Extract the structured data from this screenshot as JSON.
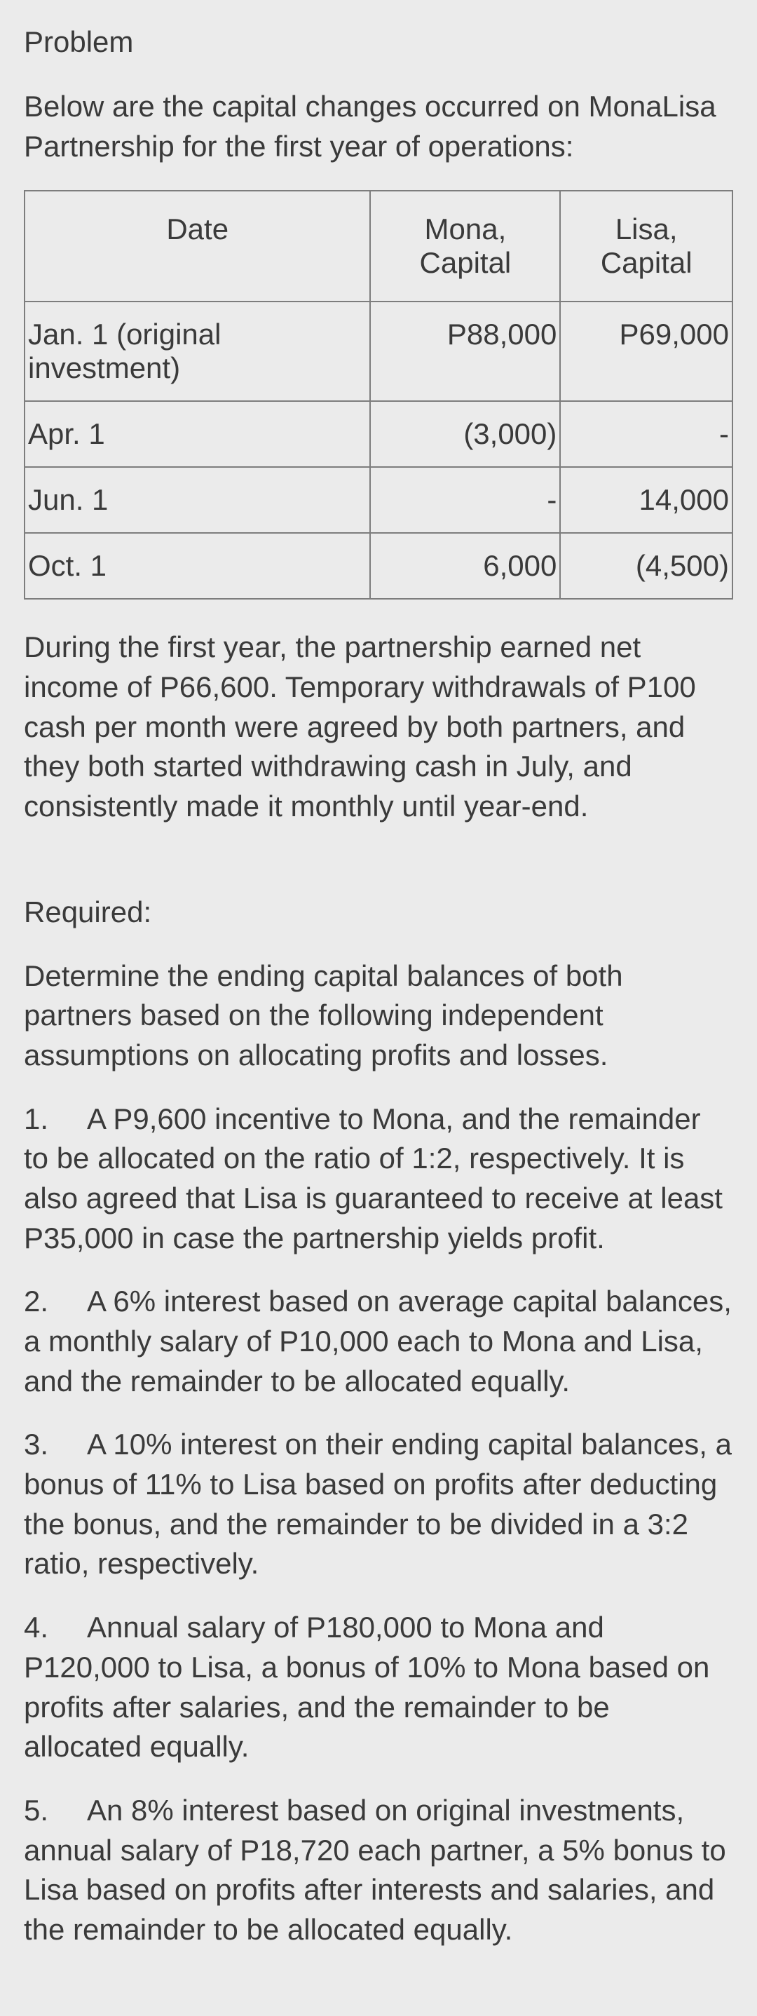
{
  "title": "Problem",
  "intro": "Below are the capital changes occurred on MonaLisa Partnership for the first year of operations:",
  "table": {
    "headers": [
      "Date",
      "Mona, Capital",
      "Lisa, Capital"
    ],
    "rows": [
      {
        "date": "Jan. 1 (original investment)",
        "mona": "P88,000",
        "lisa": "P69,000"
      },
      {
        "date": "Apr. 1",
        "mona": "(3,000)",
        "lisa": "-"
      },
      {
        "date": "Jun. 1",
        "mona": "-",
        "lisa": "14,000"
      },
      {
        "date": "Oct. 1",
        "mona": "6,000",
        "lisa": "(4,500)"
      }
    ]
  },
  "after_table": "During the first year, the partnership earned net income of P66,600. Temporary withdrawals of P100 cash per month were agreed by both partners, and they both started withdrawing cash in July, and consistently made it monthly until year-end.",
  "required_label": "Required:",
  "required_intro": "Determine the ending capital balances of both partners based on the following independent assumptions on allocating profits and losses.",
  "items": [
    {
      "n": "1.",
      "text": "A P9,600 incentive to Mona, and the remainder to be allocated on the ratio of 1:2, respectively. It is also agreed that Lisa is guaranteed to receive at least P35,000 in case the partnership yields profit."
    },
    {
      "n": "2.",
      "text": "A 6% interest based on average capital balances, a monthly salary of P10,000 each to Mona and Lisa, and the remainder to be allocated equally."
    },
    {
      "n": "3.",
      "text": "A 10% interest on their ending capital balances, a bonus of 11% to Lisa based on profits after deducting the bonus, and the remainder to be divided in a 3:2 ratio, respectively."
    },
    {
      "n": "4.",
      "text": "Annual salary of P180,000 to Mona and P120,000 to Lisa, a bonus of 10% to Mona based on profits after salaries, and the remainder to be allocated equally."
    },
    {
      "n": "5.",
      "text": "An 8% interest based on original investments, annual salary of P18,720 each partner, a 5% bonus to Lisa based on profits after interests and salaries, and the remainder to be allocated equally."
    }
  ]
}
